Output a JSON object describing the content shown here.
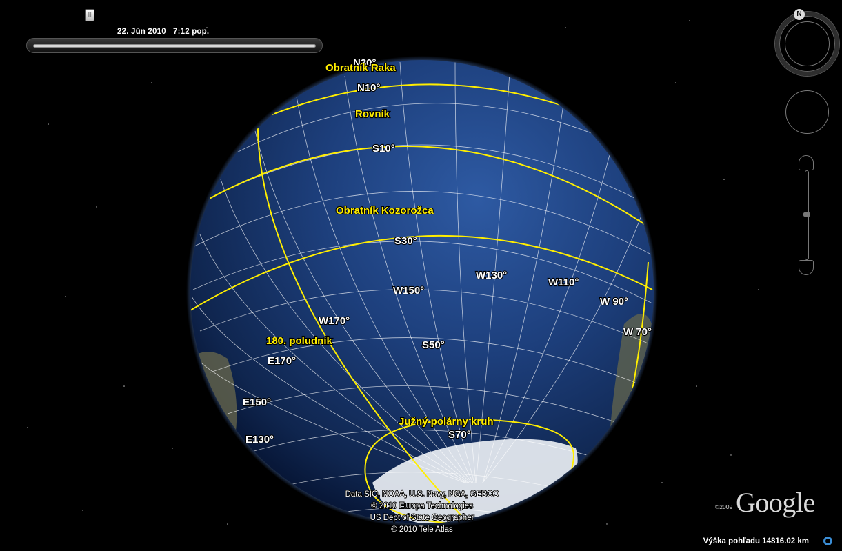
{
  "time_slider": {
    "date_label": "22. Jún 2010   7:12 pop.",
    "thumb_glyph": "|||"
  },
  "compass": {
    "north_label": "N"
  },
  "grid_labels": {
    "n30": "N30°",
    "n10": "N10°",
    "s10": "S10°",
    "s30": "S30°",
    "s50": "S50°",
    "s70": "S70°",
    "w70": "W 70°",
    "w90": "W 90°",
    "w110": "W110°",
    "w130": "W130°",
    "w150": "W150°",
    "w170": "W170°",
    "e170": "E170°",
    "e150": "E150°",
    "e130": "E130°"
  },
  "line_labels": {
    "tropic_cancer": "Obratník Raka",
    "equator": "Rovník",
    "tropic_capricorn": "Obratník Kozorožca",
    "meridian_180": "180. poludník",
    "antarctic_circle": "Južný polárny kruh"
  },
  "credits": [
    "Data SIO, NOAA, U.S. Navy, NGA, GEBCO",
    "© 2010 Europa Technologies",
    "US Dept of State Geographer",
    "© 2010 Tele Atlas"
  ],
  "logo": {
    "year": "©2009",
    "name": "Google"
  },
  "status": {
    "eye_altitude": "Výška pohľadu 14816.02 km"
  },
  "colors": {
    "overlay_line": "#ffee00",
    "ocean": "#1d3f7c",
    "space": "#000000",
    "status_icon": "#3b8ed6"
  }
}
